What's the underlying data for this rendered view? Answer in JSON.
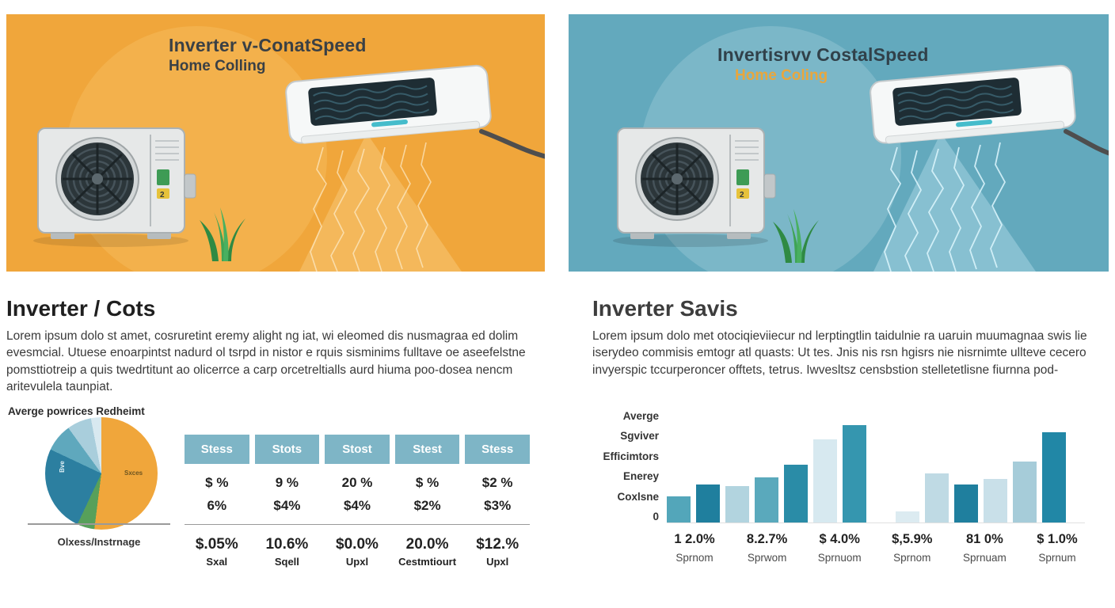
{
  "brand_colors": {
    "left_hero_bg": "#F0A63B",
    "right_hero_bg": "#63A9BD",
    "table_header_teal": "#7EB5C6",
    "subtitle_orange": "#E9A63C",
    "pie_orange": "#F0A63B",
    "pie_dark_teal": "#2C7FA0"
  },
  "left": {
    "hero": {
      "title": "Inverter v-ConatSpeed",
      "subtitle": "Home Colling"
    },
    "heading": "Inverter / Cots",
    "body": "Lorem ipsum dolo st amet, cosruretint eremy alight ng iat, wi eleomed dis nusmagraa ed dolim evesmcial. Utuese enoarpintst nadurd ol tsrpd in nistor e rquis sisminims fulltave oe aseefelstne pomsttiotreip a quis twedrtitunt ao olicerrce a carp orcetreltialls aurd hiuma poo-dosea nencm aritevulela taunpiat.",
    "pie_title": "Averge powrices Redheimt",
    "pie_caption": "Olxess/Instrnage",
    "pie_inner_labels": {
      "orange": "Sxces",
      "blue": "Bve"
    }
  },
  "right": {
    "hero": {
      "title": "Invertisrvv CostalSpeed",
      "subtitle": "Home Coling"
    },
    "heading": "Inverter Savis",
    "body": "Lorem ipsum dolo met otociqieviiecur nd lerptingtlin taidulnie ra uaruin muumagnaa swis lie iserydeo commisis emtogr atl quasts: Ut tes. Jnis nis rsn hgisrs nie nisrnimte ullteve cecero invyerspic tccurperoncer offtets, tetrus. Iwvesltsz censbstion stelletetlisne fiurnna pod-"
  },
  "chart_data": [
    {
      "type": "pie",
      "title": "Averge powrices Redheimt",
      "caption": "Olxess/Instrnage",
      "slices": [
        {
          "label": "Sxces",
          "value": 52,
          "color": "#F0A63B"
        },
        {
          "label": "",
          "value": 5,
          "color": "#57A05A"
        },
        {
          "label": "Bve",
          "value": 25,
          "color": "#2C7FA0"
        },
        {
          "label": "",
          "value": 8,
          "color": "#5FA8BD"
        },
        {
          "label": "",
          "value": 7,
          "color": "#A9CEDC"
        },
        {
          "label": "",
          "value": 3,
          "color": "#D8E9F0"
        }
      ]
    },
    {
      "type": "table",
      "headers": [
        "Stess",
        "Stots",
        "Stost",
        "Stest",
        "Stess"
      ],
      "rows": [
        [
          "$ %",
          "9 %",
          "20 %",
          "$ %",
          "$2 %"
        ],
        [
          "6%",
          "$4%",
          "$4%",
          "$2%",
          "$3%"
        ]
      ],
      "footer_values": [
        "$.05%",
        "10.6%",
        "$0.0%",
        "20.0%",
        "$12.%"
      ],
      "footer_labels": [
        "Sxal",
        "Sqell",
        "Upxl",
        "Cestmtiourt",
        "Upxl"
      ]
    },
    {
      "type": "bar",
      "title": "Inverter Savis",
      "ylim": [
        0,
        100
      ],
      "grid": false,
      "y_axis_labels": [
        "Averge",
        "Sgviver",
        "Efficimtors",
        "Enerey",
        "Coxlsne",
        "0"
      ],
      "x_labels": [
        {
          "value": "1 2.0%",
          "label": "Sprnom"
        },
        {
          "value": "8.2.7%",
          "label": "Sprwom"
        },
        {
          "value": "$ 4.0%",
          "label": "Sprnuom"
        },
        {
          "value": "$,5.9%",
          "label": "Sprnom"
        },
        {
          "value": "81 0%",
          "label": "Sprnuam"
        },
        {
          "value": "$ 1.0%",
          "label": "Sprnum"
        }
      ],
      "bars": [
        {
          "value": 27,
          "color": "#53A6BA"
        },
        {
          "value": 39,
          "color": "#1F7F9E"
        },
        {
          "value": 37,
          "color": "#B2D4DF"
        },
        {
          "value": 46,
          "color": "#5AA9BC"
        },
        {
          "value": 59,
          "color": "#2A8CA7"
        },
        {
          "value": 85,
          "color": "#D7E9F0"
        },
        {
          "value": 100,
          "color": "#3596AF"
        },
        {
          "value": 11,
          "color": "#DCEBF1",
          "gap_before": true
        },
        {
          "value": 50,
          "color": "#BFDAE4"
        },
        {
          "value": 39,
          "color": "#1F7F9E"
        },
        {
          "value": 45,
          "color": "#C9E0E9"
        },
        {
          "value": 63,
          "color": "#A6CCD9"
        },
        {
          "value": 93,
          "color": "#2187A6"
        }
      ]
    }
  ]
}
